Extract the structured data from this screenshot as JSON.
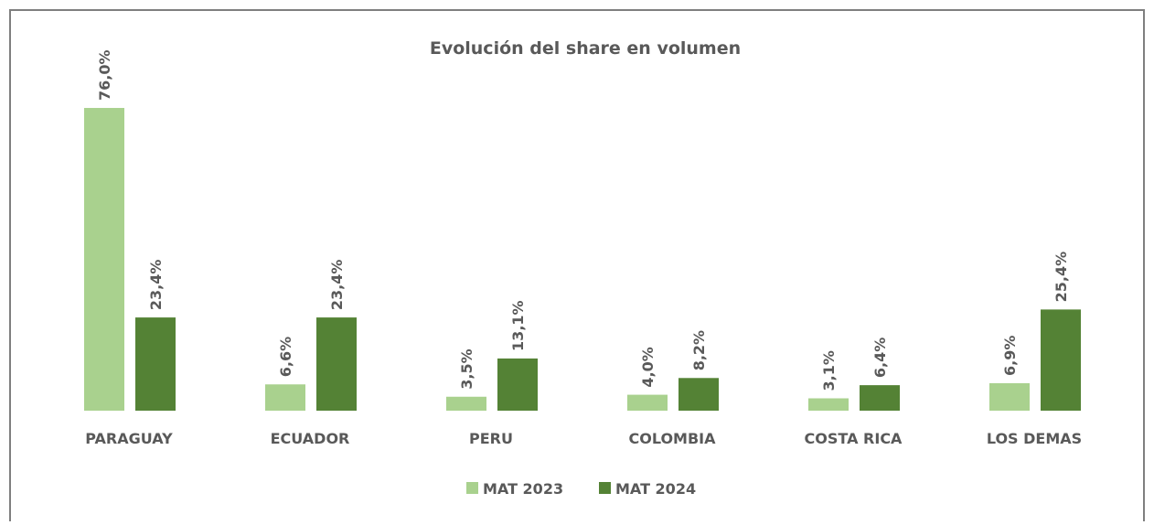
{
  "chart_data": {
    "type": "bar",
    "title": "Evolución del share en volumen",
    "categories": [
      "PARAGUAY",
      "ECUADOR",
      "PERU",
      "COLOMBIA",
      "COSTA RICA",
      "LOS DEMAS"
    ],
    "series": [
      {
        "name": "MAT 2023",
        "color": "#a9d18e",
        "values": [
          76.0,
          6.6,
          3.5,
          4.0,
          3.1,
          6.9
        ],
        "value_labels": [
          "76,0%",
          "6,6%",
          "3,5%",
          "4,0%",
          "3,1%",
          "6,9%"
        ]
      },
      {
        "name": "MAT 2024",
        "color": "#548235",
        "values": [
          23.4,
          23.4,
          13.1,
          8.2,
          6.4,
          25.4
        ],
        "value_labels": [
          "23,4%",
          "23,4%",
          "13,1%",
          "8,2%",
          "6,4%",
          "25,4%"
        ]
      }
    ],
    "legend": "bottom"
  }
}
